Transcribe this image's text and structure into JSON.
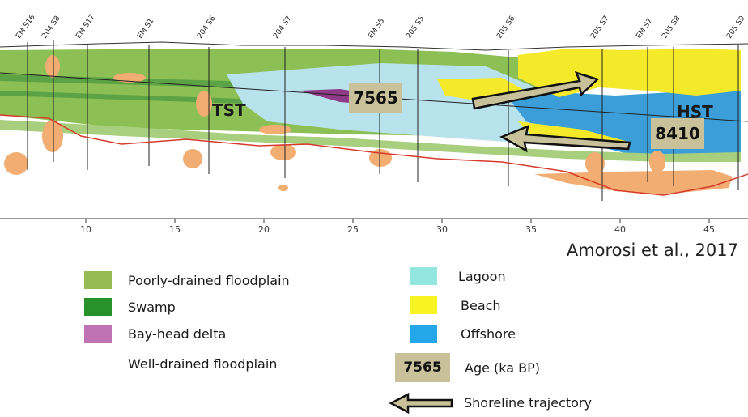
{
  "section": {
    "wells": [
      "EM S16",
      "204 S8",
      "EM S17",
      "EM S1",
      "204 S6",
      "204 S7",
      "EM S5",
      "205 S5",
      "205 S6",
      "205 S7",
      "EM S7",
      "205 S8",
      "205 S9"
    ],
    "x_ticks": [
      "10",
      "15",
      "20",
      "25",
      "30",
      "35",
      "40",
      "45"
    ],
    "labels": {
      "tst": "TST",
      "hst": "HST"
    },
    "ages": [
      "7565",
      "8410"
    ]
  },
  "citation": "Amorosi et al., 2017",
  "legend": [
    {
      "label": "Poorly-drained floodplain",
      "color": "#96bb55"
    },
    {
      "label": "Swamp",
      "color": "#27922a"
    },
    {
      "label": "Bay-head delta",
      "color": "#bf72b4"
    },
    {
      "label": "Well-drained floodplain",
      "color": ""
    },
    {
      "label": "Lagoon",
      "color": "#93e6df"
    },
    {
      "label": "Beach",
      "color": "#f8f423"
    },
    {
      "label": "Offshore",
      "color": "#23a6ea"
    },
    {
      "label": "Age (ka BP)",
      "sample": "7565",
      "color": "#c9c199"
    },
    {
      "label": "Shoreline trajectory",
      "color": "#c9c199"
    }
  ]
}
